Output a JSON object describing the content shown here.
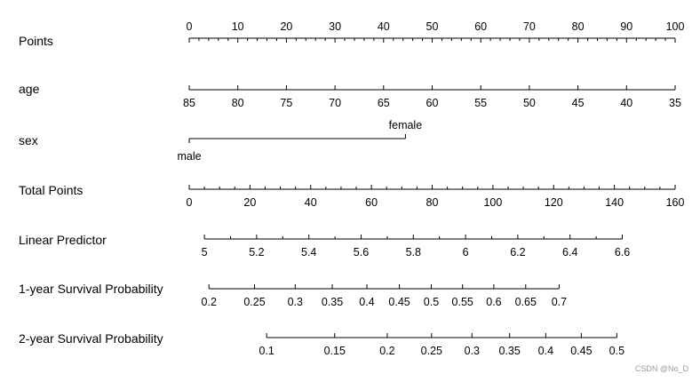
{
  "chart_data": {
    "type": "nomogram",
    "watermark": "CSDN @No_D",
    "axes": [
      {
        "id": "points",
        "label": "Points",
        "ticks": [
          0,
          10,
          20,
          30,
          40,
          50,
          60,
          70,
          80,
          90,
          100
        ],
        "tick_labels": [
          "0",
          "10",
          "20",
          "30",
          "40",
          "50",
          "60",
          "70",
          "80",
          "90",
          "100"
        ],
        "minor_per_major": 4,
        "label_side": "above"
      },
      {
        "id": "age",
        "label": "age",
        "ticks": [
          85,
          80,
          75,
          70,
          65,
          60,
          55,
          50,
          45,
          40,
          35
        ],
        "tick_labels": [
          "85",
          "80",
          "75",
          "70",
          "65",
          "60",
          "55",
          "50",
          "45",
          "40",
          "35"
        ],
        "points_for_first": 0,
        "points_for_last": 100,
        "minor_per_major": 0,
        "label_side": "below"
      },
      {
        "id": "sex",
        "label": "sex",
        "categories": [
          {
            "name": "male",
            "points": 0
          },
          {
            "name": "female",
            "points": 44.5
          }
        ]
      },
      {
        "id": "total",
        "label": "Total Points",
        "ticks": [
          0,
          20,
          40,
          60,
          80,
          100,
          120,
          140,
          160
        ],
        "tick_labels": [
          "0",
          "20",
          "40",
          "60",
          "80",
          "100",
          "120",
          "140",
          "160"
        ],
        "minor_per_major": 3,
        "label_side": "below"
      },
      {
        "id": "lp",
        "label": "Linear Predictor",
        "ticks": [
          5,
          5.2,
          5.4,
          5.6,
          5.8,
          6,
          6.2,
          6.4,
          6.6
        ],
        "tick_labels": [
          "5",
          "5.2",
          "5.4",
          "5.6",
          "5.8",
          "6",
          "6.2",
          "6.4",
          "6.6"
        ],
        "total_points_at_first": 5,
        "total_points_at_last": 142.6,
        "minor_per_major": 1,
        "label_side": "below"
      },
      {
        "id": "surv1",
        "label": "1-year Survival Probability",
        "ticks": [
          0.2,
          0.25,
          0.3,
          0.35,
          0.4,
          0.45,
          0.5,
          0.55,
          0.6,
          0.65,
          0.7
        ],
        "tick_labels": [
          "0.2",
          "0.25",
          "0.3",
          "0.35",
          "0.4",
          "0.45",
          "0.5",
          "0.55",
          "0.6",
          "0.65",
          "0.7"
        ],
        "total_points_at": [
          6.5,
          21.5,
          34.9,
          47.1,
          58.5,
          69.2,
          79.7,
          90.0,
          100.3,
          110.8,
          121.8
        ],
        "label_side": "below"
      },
      {
        "id": "surv2",
        "label": "2-year Survival Probability",
        "ticks": [
          0.1,
          0.15,
          0.2,
          0.25,
          0.3,
          0.35,
          0.4,
          0.45,
          0.5
        ],
        "tick_labels": [
          "0.1",
          "0.15",
          "0.2",
          "0.25",
          "0.3",
          "0.35",
          "0.4",
          "0.45",
          "0.5"
        ],
        "total_points_at": [
          25.5,
          47.9,
          65.2,
          79.8,
          93.1,
          105.5,
          117.4,
          129.1,
          140.8
        ],
        "label_side": "below"
      }
    ]
  }
}
